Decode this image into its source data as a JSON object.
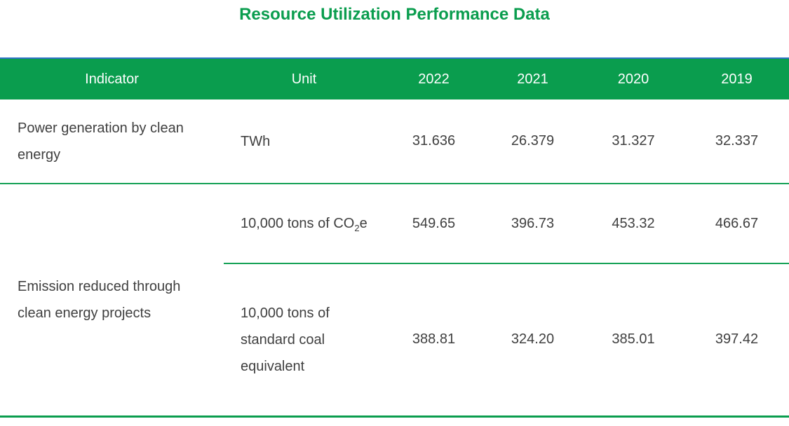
{
  "title": "Resource Utilization Performance Data",
  "colors": {
    "accent_green": "#0a9d4e",
    "header_top_line_blue": "#2e73c5",
    "body_text": "#3f3f3f",
    "header_text": "#ffffff"
  },
  "table": {
    "headers": [
      "Indicator",
      "Unit",
      "2022",
      "2021",
      "2020",
      "2019"
    ],
    "rows": [
      {
        "indicator": "Power generation by clean energy",
        "unit": "TWh",
        "values": [
          "31.636",
          "26.379",
          "31.327",
          "32.337"
        ]
      },
      {
        "indicator": "Emission reduced through clean energy projects",
        "subrows": [
          {
            "unit_main": "10,000 tons of CO",
            "unit_sub": "2",
            "unit_tail": "e",
            "values": [
              "549.65",
              "396.73",
              "453.32",
              "466.67"
            ]
          },
          {
            "unit": "10,000 tons of standard coal equivalent",
            "values": [
              "388.81",
              "324.20",
              "385.01",
              "397.42"
            ]
          }
        ]
      }
    ]
  },
  "chart_data": {
    "type": "table",
    "title": "Resource Utilization Performance Data",
    "columns": [
      "Indicator",
      "Unit",
      "2022",
      "2021",
      "2020",
      "2019"
    ],
    "rows": [
      [
        "Power generation by clean energy",
        "TWh",
        "31.636",
        "26.379",
        "31.327",
        "32.337"
      ],
      [
        "Emission reduced through clean energy projects",
        "10,000 tons of CO2e",
        "549.65",
        "396.73",
        "453.32",
        "466.67"
      ],
      [
        "Emission reduced through clean energy projects",
        "10,000 tons of standard coal equivalent",
        "388.81",
        "324.20",
        "385.01",
        "397.42"
      ]
    ]
  }
}
